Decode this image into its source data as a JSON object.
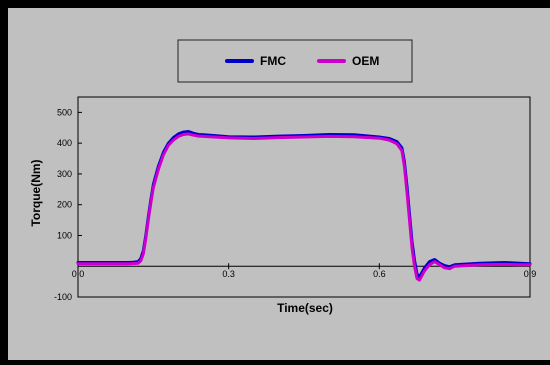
{
  "chart_data": {
    "type": "line",
    "title": "",
    "xlabel": "Time(sec)",
    "ylabel": "Torque(Nm)",
    "xlim": [
      0,
      0.9
    ],
    "ylim": [
      -100,
      550
    ],
    "x_ticks": [
      0.0,
      0.3,
      0.6,
      0.9
    ],
    "x_tick_labels": [
      "0.0",
      "0.3",
      "0.6",
      "0.9"
    ],
    "y_ticks": [
      -100,
      100,
      200,
      300,
      400,
      500
    ],
    "y_tick_labels": [
      "-100",
      "100",
      "200",
      "300",
      "400",
      "500"
    ],
    "grid": false,
    "legend": "top-center",
    "colors": {
      "page": "#000000",
      "panel": "#c0c0c0",
      "legend_box": "#c0c0c0",
      "plot_area": "#c0c0c0"
    },
    "series": [
      {
        "name": "FMC",
        "color": "#0000cc",
        "x": [
          0,
          0.05,
          0.1,
          0.11,
          0.12,
          0.125,
          0.13,
          0.135,
          0.14,
          0.145,
          0.15,
          0.16,
          0.17,
          0.18,
          0.19,
          0.2,
          0.21,
          0.22,
          0.23,
          0.24,
          0.25,
          0.27,
          0.3,
          0.35,
          0.4,
          0.45,
          0.5,
          0.55,
          0.6,
          0.62,
          0.635,
          0.645,
          0.65,
          0.655,
          0.66,
          0.665,
          0.67,
          0.675,
          0.68,
          0.69,
          0.7,
          0.71,
          0.72,
          0.73,
          0.74,
          0.75,
          0.8,
          0.85,
          0.88,
          0.9
        ],
        "y": [
          12,
          12,
          12,
          13,
          15,
          25,
          50,
          100,
          160,
          215,
          265,
          325,
          370,
          400,
          418,
          430,
          436,
          438,
          432,
          428,
          427,
          425,
          421,
          420,
          423,
          425,
          428,
          427,
          420,
          415,
          405,
          385,
          340,
          260,
          170,
          80,
          20,
          -25,
          -35,
          -5,
          15,
          22,
          10,
          2,
          -2,
          5,
          10,
          12,
          10,
          8
        ]
      },
      {
        "name": "OEM",
        "color": "#cc00cc",
        "x": [
          0,
          0.05,
          0.1,
          0.11,
          0.12,
          0.125,
          0.13,
          0.135,
          0.14,
          0.145,
          0.15,
          0.16,
          0.17,
          0.18,
          0.19,
          0.2,
          0.21,
          0.22,
          0.23,
          0.24,
          0.25,
          0.27,
          0.3,
          0.35,
          0.4,
          0.45,
          0.5,
          0.55,
          0.6,
          0.62,
          0.635,
          0.645,
          0.65,
          0.655,
          0.66,
          0.665,
          0.67,
          0.675,
          0.68,
          0.69,
          0.7,
          0.71,
          0.72,
          0.73,
          0.74,
          0.75,
          0.8,
          0.85,
          0.88,
          0.9
        ],
        "y": [
          8,
          8,
          8,
          9,
          10,
          18,
          40,
          90,
          150,
          205,
          255,
          315,
          362,
          393,
          410,
          422,
          428,
          430,
          426,
          423,
          422,
          420,
          417,
          415,
          418,
          420,
          422,
          421,
          416,
          410,
          398,
          375,
          325,
          240,
          150,
          60,
          0,
          -40,
          -45,
          -15,
          5,
          15,
          5,
          -5,
          -8,
          0,
          5,
          6,
          5,
          5
        ]
      }
    ]
  }
}
